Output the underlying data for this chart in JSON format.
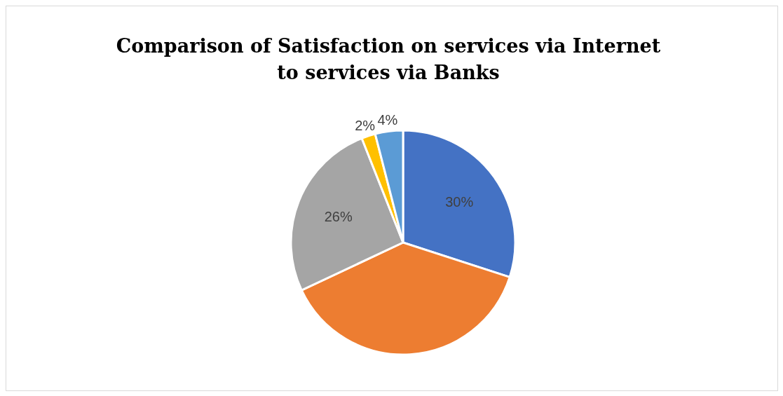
{
  "chart_data": {
    "type": "pie",
    "title": "Comparison of Satisfaction on services via Internet to services via Banks",
    "categories": [
      null,
      null,
      null,
      null,
      null
    ],
    "values": [
      30,
      38,
      26,
      2,
      4
    ],
    "colors": [
      "#4472c4",
      "#ed7d31",
      "#a5a5a5",
      "#ffc000",
      "#5b9bd5"
    ],
    "value_labels": [
      "30%",
      null,
      "26%",
      "2%",
      "4%"
    ],
    "legend": false
  }
}
